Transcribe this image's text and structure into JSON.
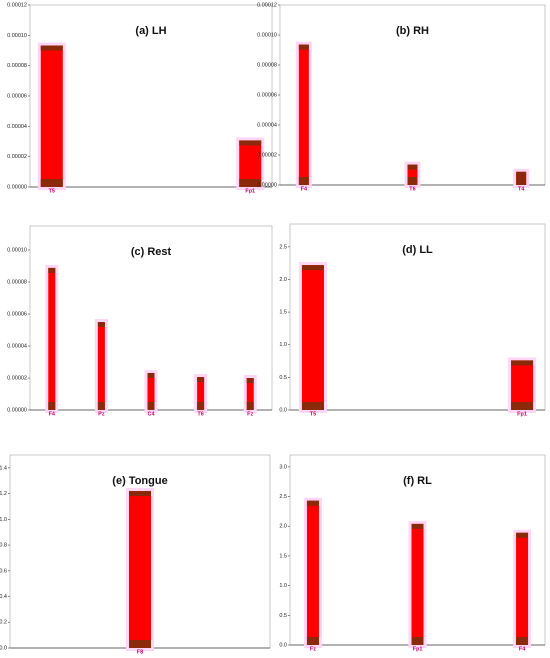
{
  "chart_data": [
    {
      "type": "bar",
      "title": "(a) LH",
      "categories": [
        "T5",
        "Fp1"
      ],
      "values": [
        9.33e-05,
        3.07e-05
      ],
      "color": "#ff0000",
      "ylim": [
        0,
        0.00012
      ],
      "yticks": [
        {
          "value": 0,
          "label": "0.00000"
        },
        {
          "value": 2e-05,
          "label": "0.00002"
        },
        {
          "value": 4e-05,
          "label": "0.00004"
        },
        {
          "value": 6e-05,
          "label": "0.00006"
        },
        {
          "value": 8e-05,
          "label": "0.00008"
        },
        {
          "value": 0.0001,
          "label": "0.00010"
        },
        {
          "value": 0.00012,
          "label": "0.00012"
        }
      ]
    },
    {
      "type": "bar",
      "title": "(b) RH",
      "categories": [
        "F4",
        "T6",
        "T4"
      ],
      "values": [
        9.36e-05,
        1.36e-05,
        8.8e-06
      ],
      "color": "#ff0000",
      "ylim": [
        0,
        0.00012
      ],
      "yticks": [
        {
          "value": 0,
          "label": "0.00000"
        },
        {
          "value": 2e-05,
          "label": "0.00002"
        },
        {
          "value": 4e-05,
          "label": "0.00004"
        },
        {
          "value": 6e-05,
          "label": "0.00006"
        },
        {
          "value": 8e-05,
          "label": "0.00008"
        },
        {
          "value": 0.0001,
          "label": "0.00010"
        },
        {
          "value": 0.00012,
          "label": "0.00012"
        }
      ]
    },
    {
      "type": "bar",
      "title": "(c) Rest",
      "categories": [
        "F4",
        "Pz",
        "C4",
        "T6",
        "Fz"
      ],
      "values": [
        8.88e-05,
        5.5e-05,
        2.31e-05,
        2.06e-05,
        2e-05
      ],
      "color": "#ff0000",
      "ylim": [
        0,
        0.000115
      ],
      "yticks": [
        {
          "value": 0,
          "label": "0.00000"
        },
        {
          "value": 2e-05,
          "label": "0.00002"
        },
        {
          "value": 4e-05,
          "label": "0.00004"
        },
        {
          "value": 6e-05,
          "label": "0.00006"
        },
        {
          "value": 8e-05,
          "label": "0.00008"
        },
        {
          "value": 0.0001,
          "label": "0.00010"
        }
      ]
    },
    {
      "type": "bar",
      "title": "(d) LL",
      "categories": [
        "T5",
        "Fp1"
      ],
      "values": [
        2.22,
        0.76
      ],
      "color": "#ff0000",
      "ylim": [
        0,
        2.85
      ],
      "yticks": [
        {
          "value": 0,
          "label": "0.0"
        },
        0.5,
        {
          "value": 1,
          "label": "1.0"
        },
        1.5,
        {
          "value": 2,
          "label": "2.0"
        },
        2.5
      ]
    },
    {
      "type": "bar",
      "title": "(e) Tongue",
      "categories": [
        "F8"
      ],
      "values": [
        1.22
      ],
      "color": "#ff0000",
      "ylim": [
        0,
        1.5
      ],
      "yticks": [
        {
          "value": 0,
          "label": "0.0"
        },
        0.2,
        0.4,
        0.6,
        0.8,
        {
          "value": 1,
          "label": "1.0"
        },
        1.2,
        1.4
      ]
    },
    {
      "type": "bar",
      "title": "(f) RL",
      "categories": [
        "Fz",
        "Fp1",
        "F4"
      ],
      "values": [
        2.43,
        2.04,
        1.89
      ],
      "color": "#ff0000",
      "ylim": [
        0,
        3.2
      ],
      "yticks": [
        {
          "value": 0,
          "label": "0.0"
        },
        0.5,
        {
          "value": 1,
          "label": "1.0"
        },
        1.5,
        {
          "value": 2,
          "label": "2.0"
        },
        2.5,
        {
          "value": 3,
          "label": "3.0"
        }
      ]
    }
  ]
}
